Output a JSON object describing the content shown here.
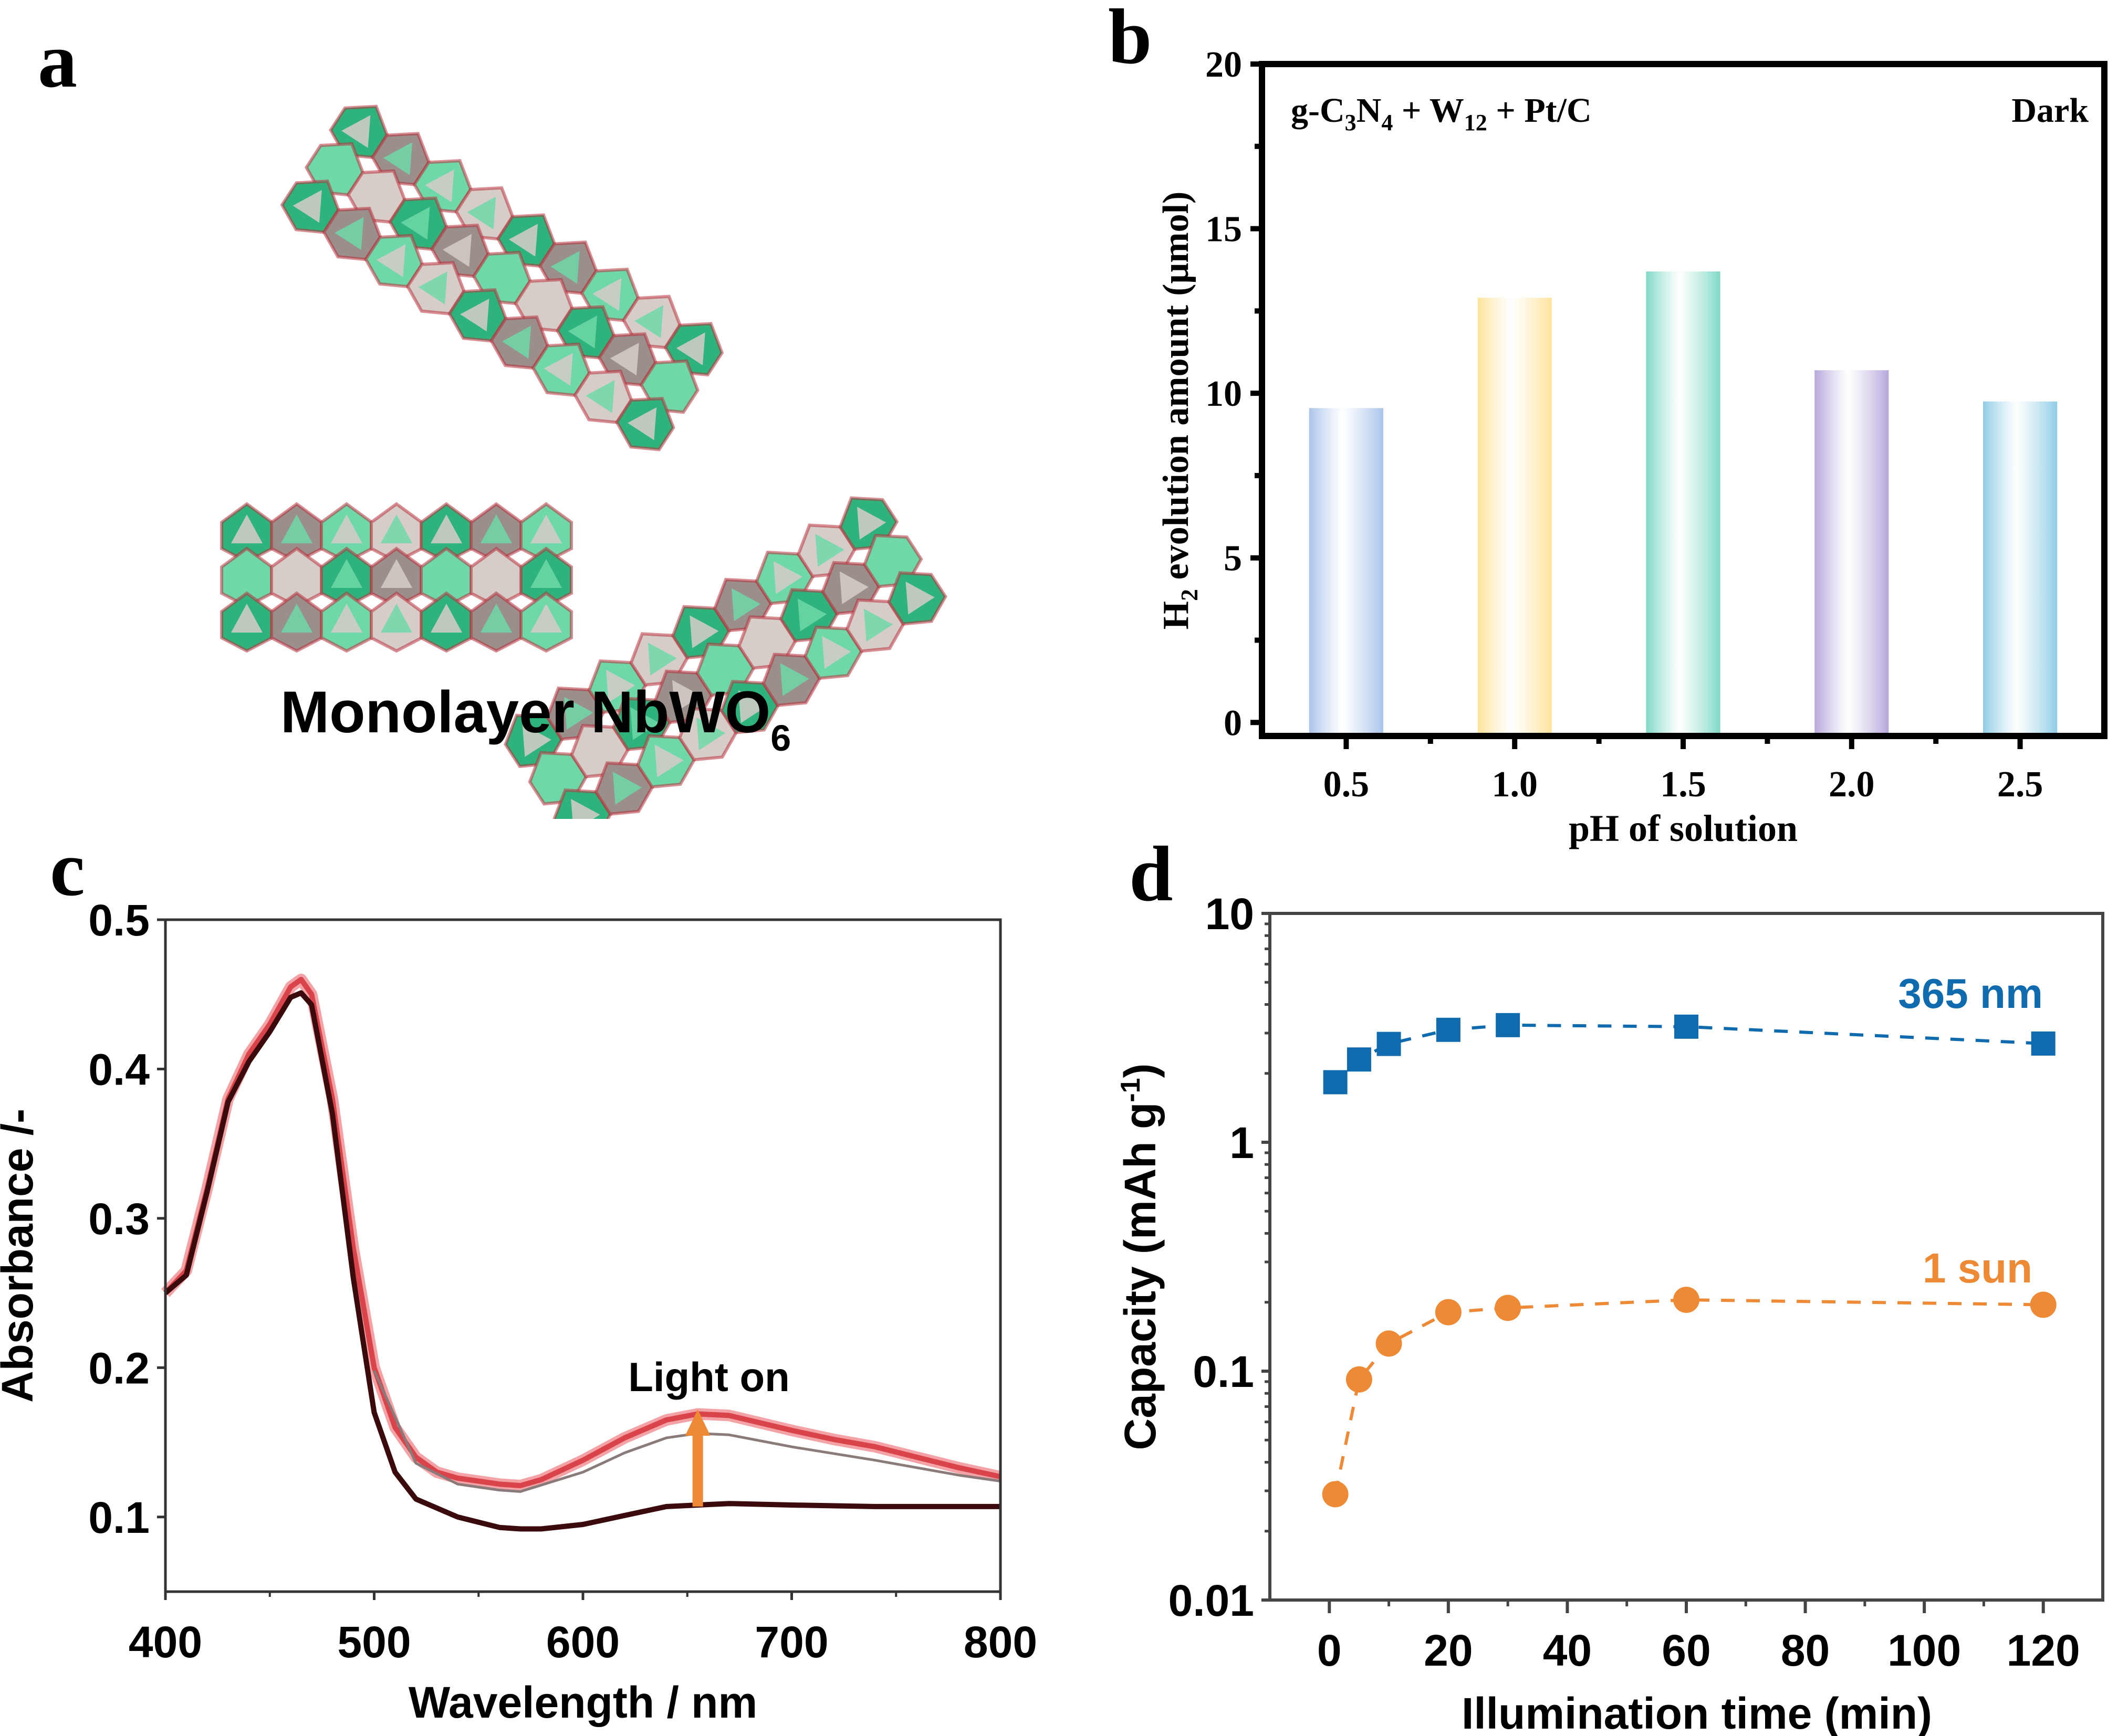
{
  "panels": {
    "a": {
      "letter": "a",
      "caption": "Monolayer NbWO",
      "caption_sub": "6"
    },
    "b": {
      "letter": "b"
    },
    "c": {
      "letter": "c"
    },
    "d": {
      "letter": "d"
    }
  },
  "structure_colors": {
    "green": "#2fb37c",
    "light_green": "#6fd8a8",
    "gray": "#9b8f8c",
    "light_gray": "#d6ccc8",
    "red_edge": "#b8323c"
  },
  "chart_data": [
    {
      "id": "b",
      "type": "bar",
      "title": "",
      "annotation_left": {
        "parts": [
          [
            "g-C",
            ""
          ],
          [
            "3",
            "sub"
          ],
          [
            "N",
            ""
          ],
          [
            "4",
            "sub"
          ],
          [
            " + W",
            ""
          ],
          [
            "12",
            "sub"
          ],
          [
            " + Pt/C",
            ""
          ]
        ]
      },
      "annotation_right": "Dark",
      "xlabel": "pH of solution",
      "ylabel": "H",
      "ylabel_sub": "2",
      "ylabel_rest": " evolution amount (μmol)",
      "categories": [
        "0.5",
        "1.0",
        "1.5",
        "2.0",
        "2.5"
      ],
      "x": [
        0.5,
        1.0,
        1.5,
        2.0,
        2.5
      ],
      "values": [
        9.55,
        12.9,
        13.7,
        10.7,
        9.75
      ],
      "colors": [
        "#a9c4ea",
        "#fde39a",
        "#7fd9c6",
        "#b7a7dc",
        "#8fcde6"
      ],
      "xlim": [
        0.25,
        2.75
      ],
      "ylim": [
        -0.41,
        20
      ],
      "yticks": [
        0,
        5,
        10,
        15,
        20
      ],
      "grid": false,
      "legend": "none"
    },
    {
      "id": "c",
      "type": "line",
      "xlabel": "Wavelength / nm",
      "ylabel": "Absorbance /-",
      "xlim": [
        400,
        800
      ],
      "ylim": [
        0.05,
        0.5
      ],
      "xticks": [
        400,
        500,
        600,
        700,
        800
      ],
      "yticks": [
        0.1,
        0.2,
        0.3,
        0.4,
        0.5
      ],
      "annotation": "Light on",
      "arrow": {
        "x": 655,
        "from": 0.107,
        "to": 0.172,
        "color": "#ee8a35"
      },
      "series": [
        {
          "name": "light-on",
          "color": "#d9434a",
          "x": [
            400,
            410,
            420,
            430,
            440,
            450,
            460,
            465,
            470,
            480,
            490,
            500,
            510,
            520,
            530,
            540,
            550,
            560,
            570,
            580,
            600,
            620,
            640,
            655,
            670,
            700,
            720,
            740,
            760,
            780,
            800
          ],
          "y": [
            0.25,
            0.265,
            0.32,
            0.38,
            0.41,
            0.43,
            0.455,
            0.46,
            0.45,
            0.38,
            0.28,
            0.2,
            0.16,
            0.14,
            0.13,
            0.126,
            0.124,
            0.122,
            0.121,
            0.125,
            0.138,
            0.153,
            0.165,
            0.169,
            0.168,
            0.158,
            0.152,
            0.147,
            0.14,
            0.133,
            0.127
          ]
        },
        {
          "name": "intermediate",
          "color": "#8b7a7a",
          "x": [
            500,
            520,
            540,
            560,
            570,
            600,
            620,
            640,
            655,
            670,
            700,
            740,
            780,
            800
          ],
          "y": [
            0.198,
            0.136,
            0.122,
            0.118,
            0.117,
            0.13,
            0.143,
            0.153,
            0.156,
            0.155,
            0.147,
            0.138,
            0.128,
            0.124
          ]
        },
        {
          "name": "dark",
          "color": "#3a0a0c",
          "x": [
            400,
            410,
            420,
            430,
            440,
            450,
            460,
            465,
            470,
            480,
            490,
            500,
            510,
            520,
            540,
            560,
            570,
            580,
            600,
            620,
            640,
            655,
            670,
            700,
            740,
            780,
            800
          ],
          "y": [
            0.25,
            0.262,
            0.318,
            0.378,
            0.405,
            0.425,
            0.448,
            0.451,
            0.443,
            0.37,
            0.26,
            0.17,
            0.13,
            0.112,
            0.1,
            0.093,
            0.092,
            0.092,
            0.095,
            0.101,
            0.107,
            0.108,
            0.109,
            0.108,
            0.107,
            0.107,
            0.107
          ]
        }
      ],
      "grid": false,
      "legend": "none"
    },
    {
      "id": "d",
      "type": "scatter",
      "xlabel": "Illumination time (min)",
      "ylabel": "Capacity (mAh g",
      "ylabel_sup": "-1",
      "ylabel_end": ")",
      "yscale": "log",
      "xlim": [
        -10,
        130
      ],
      "ylim": [
        0.01,
        10
      ],
      "xticks": [
        0,
        20,
        40,
        60,
        80,
        100,
        120
      ],
      "yticks": [
        0.01,
        0.1,
        1,
        10
      ],
      "ytick_labels": [
        "0.01",
        "0.1",
        "1",
        "10"
      ],
      "series": [
        {
          "name": "365 nm",
          "marker": "square",
          "color": "#0f6aae",
          "line": "dashed",
          "x": [
            1,
            5,
            10,
            20,
            30,
            60,
            120
          ],
          "y": [
            1.83,
            2.3,
            2.69,
            3.1,
            3.25,
            3.2,
            2.7
          ]
        },
        {
          "name": "1 sun",
          "marker": "circle",
          "color": "#ee8a35",
          "line": "dashed",
          "x": [
            1,
            5,
            10,
            20,
            30,
            60,
            120
          ],
          "y": [
            0.029,
            0.092,
            0.132,
            0.181,
            0.189,
            0.205,
            0.195
          ]
        }
      ],
      "grid": false,
      "legend": "inline labels top-right"
    }
  ]
}
